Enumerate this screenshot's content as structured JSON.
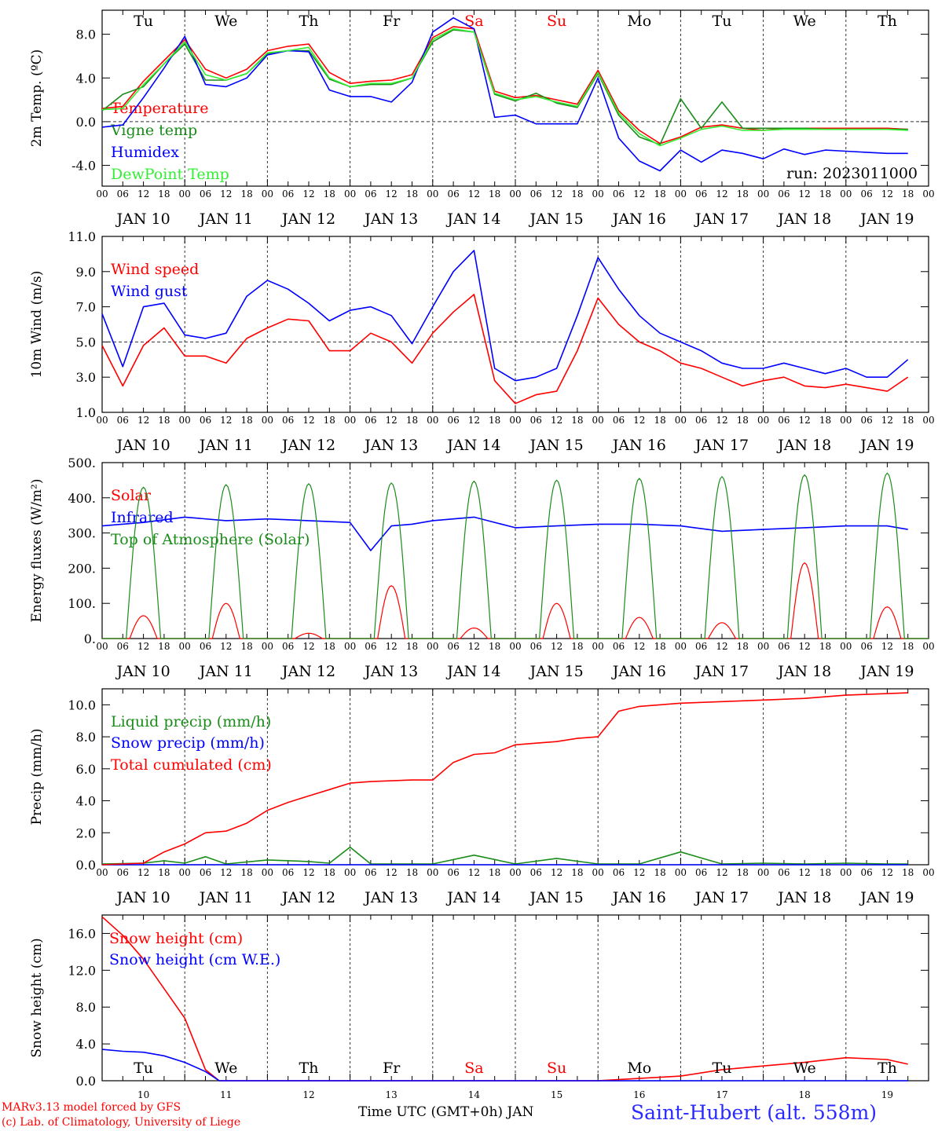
{
  "footer": {
    "model": "MARv3.13 model forced by GFS",
    "credit": "(c) Lab. of Climatology, University of Liege",
    "xlabel": "Time UTC (GMT+0h) JAN",
    "station": "Saint-Hubert (alt. 558m)"
  },
  "x_axis": {
    "hour_ticks": [
      "00",
      "06",
      "12",
      "18"
    ],
    "days": [
      "JAN 10",
      "JAN 11",
      "JAN 12",
      "JAN 13",
      "JAN 14",
      "JAN 15",
      "JAN 16",
      "JAN 17",
      "JAN 18",
      "JAN 19"
    ],
    "day_numbers": [
      "10",
      "11",
      "12",
      "13",
      "14",
      "15",
      "16",
      "17",
      "18",
      "19"
    ],
    "weekdays": [
      "Tu",
      "We",
      "Th",
      "Fr",
      "Sa",
      "Su",
      "Mo",
      "Tu",
      "We",
      "Th"
    ],
    "weekday_colors": [
      "#000000",
      "#000000",
      "#000000",
      "#000000",
      "#ff0000",
      "#ff0000",
      "#000000",
      "#000000",
      "#000000",
      "#000000"
    ]
  },
  "chart_data": [
    {
      "type": "line",
      "title": "",
      "ylabel": "2m Temp. (ºC)",
      "ylim": [
        -5.9,
        10.2
      ],
      "yticks": [
        "8.0",
        "4.0",
        "0.0",
        "-4.0"
      ],
      "ytick_values": [
        8,
        4,
        0,
        -4
      ],
      "ref_line": 0,
      "annotation": "run: 2023011000",
      "x_unit": "hours since JAN 10 00 UTC",
      "series": [
        {
          "name": "Temperature",
          "color": "#ff0000",
          "x": [
            0,
            6,
            12,
            18,
            24,
            30,
            36,
            42,
            48,
            54,
            60,
            66,
            72,
            78,
            84,
            90,
            96,
            102,
            108,
            114,
            120,
            126,
            132,
            138,
            144,
            150,
            156,
            162,
            168,
            174,
            180,
            186,
            192,
            198,
            204,
            210,
            216,
            222,
            228,
            234
          ],
          "y": [
            1.2,
            1.4,
            3.7,
            5.6,
            7.5,
            4.8,
            4.0,
            4.8,
            6.5,
            6.9,
            7.1,
            4.5,
            3.5,
            3.7,
            3.8,
            4.3,
            7.7,
            8.7,
            8.5,
            2.8,
            2.2,
            2.4,
            2.0,
            1.6,
            4.7,
            1.0,
            -0.8,
            -2.0,
            -1.4,
            -0.5,
            -0.3,
            -0.6,
            -0.8,
            -0.6,
            -0.6,
            -0.6,
            -0.6,
            -0.6,
            -0.6,
            -0.7
          ]
        },
        {
          "name": "Vigne temp",
          "color": "#1a8c1a",
          "x": [
            0,
            6,
            12,
            18,
            24,
            30,
            36,
            42,
            48,
            54,
            60,
            66,
            72,
            78,
            84,
            90,
            96,
            102,
            108,
            114,
            120,
            126,
            132,
            138,
            144,
            150,
            156,
            162,
            168,
            174,
            180,
            186,
            192,
            198,
            204,
            210,
            216,
            222,
            228,
            234
          ],
          "y": [
            1.0,
            2.5,
            3.2,
            5.3,
            7.1,
            3.8,
            3.8,
            4.4,
            6.2,
            6.5,
            6.5,
            3.9,
            3.2,
            3.4,
            3.4,
            4.0,
            7.3,
            8.4,
            8.2,
            2.5,
            1.9,
            2.6,
            1.7,
            1.3,
            4.4,
            0.6,
            -1.4,
            -2.1,
            2.1,
            -0.6,
            1.8,
            -0.6,
            -0.6,
            -0.6,
            -0.6,
            -0.7,
            -0.7,
            -0.7,
            -0.7,
            -0.7
          ]
        },
        {
          "name": "Humidex",
          "color": "#0000ff",
          "x": [
            0,
            6,
            12,
            18,
            24,
            30,
            36,
            42,
            48,
            54,
            60,
            66,
            72,
            78,
            84,
            90,
            96,
            102,
            108,
            114,
            120,
            126,
            132,
            138,
            144,
            150,
            156,
            162,
            168,
            174,
            180,
            186,
            192,
            198,
            204,
            210,
            216,
            222,
            228,
            234
          ],
          "y": [
            -0.5,
            -0.3,
            2.2,
            4.9,
            7.8,
            3.4,
            3.2,
            4.0,
            6.1,
            6.5,
            6.4,
            2.9,
            2.3,
            2.3,
            1.8,
            3.6,
            8.2,
            9.5,
            8.5,
            0.4,
            0.6,
            -0.2,
            -0.2,
            -0.2,
            4.0,
            -1.5,
            -3.6,
            -4.5,
            -2.6,
            -3.7,
            -2.6,
            -2.9,
            -3.4,
            -2.5,
            -3.0,
            -2.6,
            -2.7,
            -2.8,
            -2.9,
            -2.9
          ]
        },
        {
          "name": "DewPoint Temp",
          "color": "#33ee33",
          "x": [
            0,
            6,
            12,
            18,
            24,
            30,
            36,
            42,
            48,
            54,
            60,
            66,
            72,
            78,
            84,
            90,
            96,
            102,
            108,
            114,
            120,
            126,
            132,
            138,
            144,
            150,
            156,
            162,
            168,
            174,
            180,
            186,
            192,
            198,
            204,
            210,
            216,
            222,
            228,
            234
          ],
          "y": [
            1.1,
            1.2,
            3.4,
            5.3,
            7.3,
            4.3,
            3.8,
            4.4,
            6.3,
            6.5,
            6.8,
            4.0,
            3.2,
            3.5,
            3.5,
            4.0,
            7.5,
            8.5,
            8.2,
            2.6,
            2.0,
            2.3,
            1.8,
            1.4,
            4.5,
            0.8,
            -1.1,
            -2.2,
            -1.5,
            -0.7,
            -0.4,
            -0.8,
            -0.8,
            -0.7,
            -0.7,
            -0.7,
            -0.7,
            -0.7,
            -0.7,
            -0.8
          ]
        }
      ]
    },
    {
      "type": "line",
      "title": "",
      "ylabel": "10m Wind (m/s)",
      "ylim": [
        1.0,
        11.0
      ],
      "yticks": [
        "11.0",
        "9.0",
        "7.0",
        "5.0",
        "3.0",
        "1.0"
      ],
      "ytick_values": [
        11,
        9,
        7,
        5,
        3,
        1
      ],
      "ref_line": 5,
      "x_unit": "hours since JAN 10 00 UTC",
      "series": [
        {
          "name": "Wind speed",
          "color": "#ff0000",
          "x": [
            0,
            6,
            12,
            18,
            24,
            30,
            36,
            42,
            48,
            54,
            60,
            66,
            72,
            78,
            84,
            90,
            96,
            102,
            108,
            114,
            120,
            126,
            132,
            138,
            144,
            150,
            156,
            162,
            168,
            174,
            180,
            186,
            192,
            198,
            204,
            210,
            216,
            222,
            228,
            234
          ],
          "y": [
            4.8,
            2.5,
            4.8,
            5.8,
            4.2,
            4.2,
            3.8,
            5.2,
            5.8,
            6.3,
            6.2,
            4.5,
            4.5,
            5.5,
            5.0,
            3.8,
            5.5,
            6.7,
            7.7,
            2.8,
            1.5,
            2.0,
            2.2,
            4.5,
            7.5,
            6.0,
            5.0,
            4.5,
            3.8,
            3.5,
            3.0,
            2.5,
            2.8,
            3.0,
            2.5,
            2.4,
            2.6,
            2.4,
            2.2,
            3.0
          ]
        },
        {
          "name": "Wind gust",
          "color": "#0000ff",
          "x": [
            0,
            6,
            12,
            18,
            24,
            30,
            36,
            42,
            48,
            54,
            60,
            66,
            72,
            78,
            84,
            90,
            96,
            102,
            108,
            114,
            120,
            126,
            132,
            138,
            144,
            150,
            156,
            162,
            168,
            174,
            180,
            186,
            192,
            198,
            204,
            210,
            216,
            222,
            228,
            234
          ],
          "y": [
            6.6,
            3.6,
            7.0,
            7.2,
            5.4,
            5.2,
            5.5,
            7.6,
            8.5,
            8.0,
            7.2,
            6.2,
            6.8,
            7.0,
            6.5,
            4.9,
            7.0,
            9.0,
            10.2,
            3.5,
            2.8,
            3.0,
            3.5,
            6.5,
            9.8,
            8.0,
            6.5,
            5.5,
            5.0,
            4.5,
            3.8,
            3.5,
            3.5,
            3.8,
            3.5,
            3.2,
            3.5,
            3.0,
            3.0,
            4.0
          ]
        }
      ]
    },
    {
      "type": "line",
      "title": "",
      "ylabel": "Energy fluxes (W/m²)",
      "ylim": [
        0,
        500
      ],
      "yticks": [
        "500.",
        "400.",
        "300.",
        "200.",
        "100.",
        "0."
      ],
      "ytick_values": [
        500,
        400,
        300,
        200,
        100,
        0
      ],
      "x_unit": "hours since JAN 10 00 UTC",
      "series": [
        {
          "name": "Solar",
          "color": "#ff0000",
          "daily_peak": [
            65,
            100,
            15,
            150,
            30,
            100,
            60,
            45,
            215,
            90
          ]
        },
        {
          "name": "Infrared",
          "color": "#0000ff",
          "x": [
            0,
            12,
            24,
            36,
            48,
            60,
            72,
            78,
            84,
            90,
            96,
            108,
            120,
            132,
            144,
            156,
            168,
            180,
            192,
            204,
            216,
            228,
            234
          ],
          "y": [
            320,
            330,
            345,
            335,
            340,
            335,
            330,
            250,
            320,
            325,
            335,
            345,
            315,
            320,
            325,
            325,
            320,
            305,
            310,
            315,
            320,
            320,
            310
          ]
        },
        {
          "name": "Top of Atmosphere (Solar)",
          "color": "#1a8c1a",
          "daily_peak": [
            430,
            437,
            440,
            442,
            447,
            450,
            455,
            460,
            465,
            470
          ]
        }
      ]
    },
    {
      "type": "line",
      "title": "",
      "ylabel": "Precip (mm/h)",
      "ylim": [
        0,
        11
      ],
      "yticks": [
        "10.0",
        "8.0",
        "6.0",
        "4.0",
        "2.0",
        "0.0"
      ],
      "ytick_values": [
        10,
        8,
        6,
        4,
        2,
        0
      ],
      "x_unit": "hours since JAN 10 00 UTC",
      "series": [
        {
          "name": "Liquid precip (mm/h)",
          "color": "#1a8c1a",
          "x": [
            0,
            12,
            18,
            24,
            30,
            36,
            48,
            60,
            66,
            72,
            78,
            84,
            96,
            108,
            120,
            132,
            144,
            150,
            156,
            168,
            180,
            192,
            204,
            216,
            228,
            234
          ],
          "y": [
            0.05,
            0.1,
            0.25,
            0.1,
            0.5,
            0.05,
            0.3,
            0.2,
            0.1,
            1.1,
            0.05,
            0.05,
            0.05,
            0.6,
            0.05,
            0.4,
            0.05,
            0.05,
            0.05,
            0.8,
            0.05,
            0.1,
            0.05,
            0.1,
            0.05,
            0.05
          ]
        },
        {
          "name": "Snow precip (mm/h)",
          "color": "#0000ff",
          "x": [
            0,
            234
          ],
          "y": [
            0,
            0
          ]
        },
        {
          "name": "Total cumulated (cm)",
          "color": "#ff0000",
          "x": [
            0,
            12,
            18,
            24,
            30,
            36,
            42,
            48,
            54,
            60,
            66,
            72,
            78,
            84,
            90,
            96,
            102,
            108,
            114,
            120,
            126,
            132,
            138,
            144,
            150,
            156,
            168,
            180,
            192,
            204,
            216,
            228,
            234
          ],
          "y": [
            0,
            0.1,
            0.8,
            1.3,
            2.0,
            2.1,
            2.6,
            3.4,
            3.9,
            4.3,
            4.7,
            5.1,
            5.2,
            5.25,
            5.3,
            5.3,
            6.4,
            6.9,
            7.0,
            7.5,
            7.6,
            7.7,
            7.9,
            8.0,
            9.6,
            9.9,
            10.1,
            10.2,
            10.3,
            10.4,
            10.6,
            10.7,
            10.75
          ]
        }
      ]
    },
    {
      "type": "line",
      "title": "",
      "ylabel": "Snow height (cm)",
      "ylim": [
        0,
        18
      ],
      "yticks": [
        "16.0",
        "12.0",
        "8.0",
        "4.0",
        "0.0"
      ],
      "ytick_values": [
        16,
        12,
        8,
        4,
        0
      ],
      "x_unit": "hours since JAN 10 00 UTC",
      "series": [
        {
          "name": "Snow height (cm)",
          "color": "#ff0000",
          "x": [
            0,
            6,
            12,
            18,
            24,
            30,
            34,
            36,
            72,
            120,
            144,
            168,
            180,
            192,
            204,
            216,
            228,
            234
          ],
          "y": [
            17.8,
            15.8,
            13.2,
            10.0,
            6.8,
            1.2,
            0,
            0,
            0,
            0,
            0,
            0.5,
            1.2,
            1.6,
            2.0,
            2.5,
            2.3,
            1.8
          ]
        },
        {
          "name": "Snow height (cm W.E.)",
          "color": "#0000ff",
          "x": [
            0,
            6,
            12,
            18,
            24,
            30,
            34,
            36,
            234
          ],
          "y": [
            3.4,
            3.2,
            3.1,
            2.7,
            2.0,
            1.0,
            0,
            0,
            0
          ]
        }
      ]
    }
  ]
}
